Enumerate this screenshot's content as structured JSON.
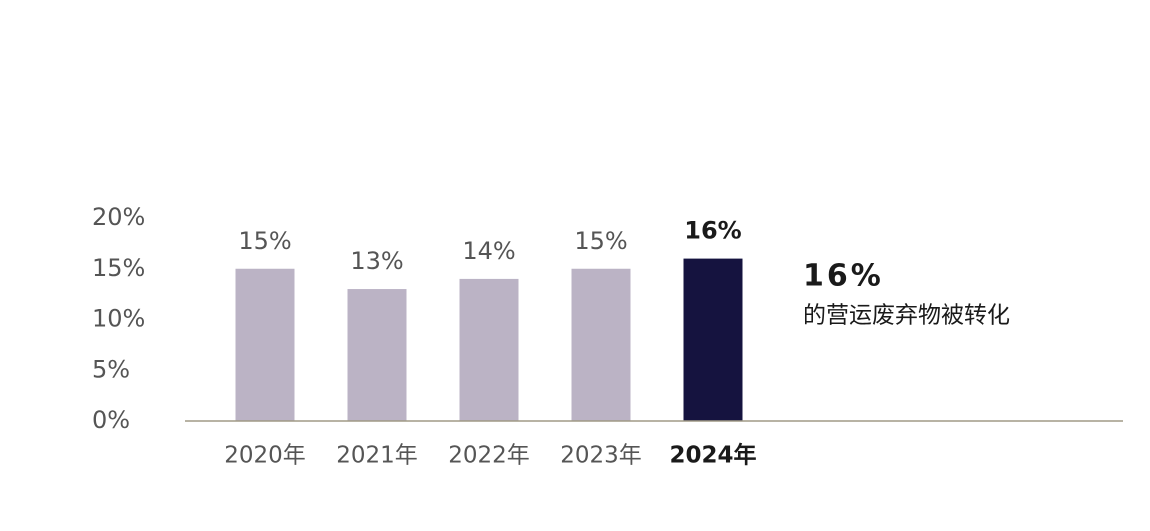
{
  "chart_data": {
    "type": "bar",
    "categories": [
      "2020年",
      "2021年",
      "2022年",
      "2023年",
      "2024年"
    ],
    "values": [
      15,
      13,
      14,
      15,
      16
    ],
    "value_labels": [
      "15%",
      "13%",
      "14%",
      "15%",
      "16%"
    ],
    "colors": [
      "#bbb3c5",
      "#bbb3c5",
      "#bbb3c5",
      "#bbb3c5",
      "#15133f"
    ],
    "highlight_color": "#15133f",
    "ylim": [
      0,
      20
    ],
    "yticks": [
      {
        "value": 0,
        "label": "0%"
      },
      {
        "value": 5,
        "label": "5%"
      },
      {
        "value": 10,
        "label": "10%"
      },
      {
        "value": 15,
        "label": "15%"
      },
      {
        "value": 20,
        "label": "20%"
      }
    ],
    "grid": false,
    "annotation_value": "16%",
    "annotation_text": "的营运废弃物被转化"
  }
}
